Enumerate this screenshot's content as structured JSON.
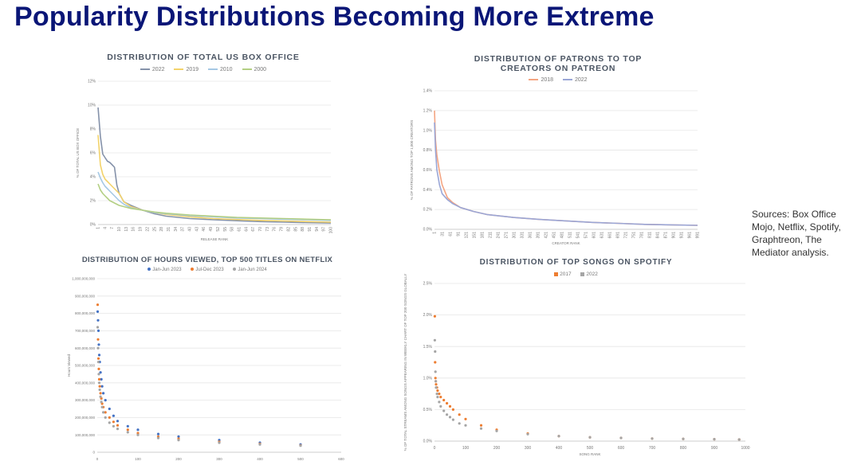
{
  "slide": {
    "title": "Popularity Distributions Becoming More Extreme",
    "sources": "Sources:  Box Office Mojo, Netflix, Spotify, Graphtreon, The Mediator analysis."
  },
  "chart_data": [
    {
      "id": "box",
      "type": "line",
      "title": "DISTRIBUTION OF TOTAL US BOX OFFICE",
      "xlabel": "RELEASE RANK",
      "ylabel": "% OF TOTAL US BOX OFFICE",
      "ylim": [
        0,
        12
      ],
      "yticks": [
        "0%",
        "2%",
        "4%",
        "6%",
        "8%",
        "10%",
        "12%"
      ],
      "xlim": [
        1,
        100
      ],
      "xticks": [
        "1",
        "4",
        "7",
        "10",
        "13",
        "16",
        "19",
        "22",
        "25",
        "28",
        "31",
        "34",
        "37",
        "40",
        "43",
        "46",
        "49",
        "52",
        "55",
        "58",
        "61",
        "64",
        "67",
        "70",
        "73",
        "76",
        "79",
        "82",
        "85",
        "88",
        "91",
        "94",
        "97",
        "100"
      ],
      "grid": true,
      "legend": "top",
      "series": [
        {
          "name": "2022",
          "color": "#8592aa",
          "x": [
            1,
            2,
            3,
            4,
            5,
            6,
            7,
            8,
            9,
            10,
            12,
            15,
            20,
            25,
            30,
            40,
            50,
            60,
            70,
            80,
            90,
            100
          ],
          "y": [
            9.8,
            7.4,
            5.9,
            5.6,
            5.3,
            5.2,
            5.0,
            4.8,
            3.3,
            2.6,
            1.9,
            1.6,
            1.2,
            0.9,
            0.7,
            0.5,
            0.4,
            0.32,
            0.25,
            0.2,
            0.16,
            0.13
          ]
        },
        {
          "name": "2019",
          "color": "#f3d36b",
          "x": [
            1,
            2,
            3,
            4,
            5,
            6,
            8,
            10,
            12,
            15,
            20,
            25,
            30,
            40,
            50,
            60,
            70,
            80,
            90,
            100
          ],
          "y": [
            7.5,
            5.0,
            4.2,
            3.8,
            3.6,
            3.4,
            3.0,
            2.6,
            1.9,
            1.5,
            1.2,
            1.0,
            0.85,
            0.65,
            0.5,
            0.42,
            0.35,
            0.3,
            0.25,
            0.2
          ]
        },
        {
          "name": "2010",
          "color": "#a5c8e4",
          "x": [
            1,
            2,
            3,
            4,
            5,
            6,
            8,
            10,
            12,
            15,
            20,
            25,
            30,
            40,
            50,
            60,
            70,
            80,
            90,
            100
          ],
          "y": [
            4.4,
            3.9,
            3.5,
            3.2,
            3.0,
            2.8,
            2.4,
            2.0,
            1.7,
            1.4,
            1.2,
            1.0,
            0.9,
            0.75,
            0.65,
            0.55,
            0.5,
            0.45,
            0.4,
            0.35
          ]
        },
        {
          "name": "2000",
          "color": "#b3cf83",
          "x": [
            1,
            2,
            3,
            4,
            5,
            6,
            8,
            10,
            12,
            15,
            20,
            25,
            30,
            40,
            50,
            60,
            70,
            80,
            90,
            100
          ],
          "y": [
            3.4,
            2.9,
            2.6,
            2.4,
            2.2,
            2.0,
            1.8,
            1.6,
            1.5,
            1.35,
            1.2,
            1.05,
            0.95,
            0.8,
            0.7,
            0.6,
            0.55,
            0.5,
            0.45,
            0.4
          ]
        }
      ]
    },
    {
      "id": "patreon",
      "type": "line",
      "title": "DISTRIBUTION OF PATRONS TO TOP CREATORS ON PATREON",
      "xlabel": "CREATOR RANK",
      "ylabel": "% OF PATRONS AMONG TOP 1,000 CREATORS",
      "ylim": [
        0,
        1.4
      ],
      "yticks": [
        "0.0%",
        "0.2%",
        "0.4%",
        "0.6%",
        "0.8%",
        "1.0%",
        "1.2%",
        "1.4%"
      ],
      "xlim": [
        1,
        1000
      ],
      "xticks": [
        "1",
        "31",
        "61",
        "91",
        "121",
        "151",
        "181",
        "211",
        "241",
        "271",
        "301",
        "331",
        "361",
        "391",
        "421",
        "451",
        "481",
        "511",
        "541",
        "571",
        "601",
        "631",
        "661",
        "691",
        "721",
        "751",
        "781",
        "811",
        "841",
        "871",
        "901",
        "931",
        "961",
        "991"
      ],
      "grid": true,
      "legend": "top",
      "series": [
        {
          "name": "2018",
          "color": "#f4a582",
          "x": [
            1,
            5,
            10,
            20,
            30,
            50,
            70,
            100,
            150,
            200,
            300,
            400,
            500,
            600,
            700,
            800,
            900,
            1000
          ],
          "y": [
            1.2,
            0.9,
            0.75,
            0.58,
            0.45,
            0.32,
            0.27,
            0.22,
            0.18,
            0.15,
            0.12,
            0.1,
            0.085,
            0.07,
            0.06,
            0.05,
            0.045,
            0.04
          ]
        },
        {
          "name": "2022",
          "color": "#9aa6d6",
          "x": [
            1,
            5,
            10,
            20,
            30,
            50,
            70,
            100,
            150,
            200,
            300,
            400,
            500,
            600,
            700,
            800,
            900,
            1000
          ],
          "y": [
            1.08,
            0.8,
            0.6,
            0.45,
            0.36,
            0.3,
            0.26,
            0.22,
            0.18,
            0.15,
            0.12,
            0.1,
            0.085,
            0.07,
            0.06,
            0.05,
            0.045,
            0.04
          ]
        }
      ]
    },
    {
      "id": "netflix",
      "type": "scatter",
      "title": "DISTRIBUTION OF HOURS VIEWED, TOP 500 TITLES ON NETFLIX",
      "xlabel": "",
      "ylabel": "Hours Viewed",
      "ylim": [
        0,
        1000000000
      ],
      "yticks": [
        "0",
        "100,000,000",
        "200,000,000",
        "300,000,000",
        "400,000,000",
        "500,000,000",
        "600,000,000",
        "700,000,000",
        "800,000,000",
        "900,000,000",
        "1,000,000,000"
      ],
      "xlim": [
        0,
        600
      ],
      "xticks": [
        "0",
        "100",
        "200",
        "300",
        "400",
        "500",
        "600"
      ],
      "grid": true,
      "legend": "top",
      "series": [
        {
          "name": "Jan-Jun 2023",
          "color": "#4472c4",
          "x": [
            1,
            2,
            3,
            4,
            5,
            6,
            8,
            10,
            12,
            15,
            20,
            30,
            40,
            50,
            75,
            100,
            150,
            200,
            300,
            400,
            500
          ],
          "y": [
            810000000,
            760000000,
            700000000,
            620000000,
            560000000,
            520000000,
            460000000,
            420000000,
            380000000,
            340000000,
            300000000,
            250000000,
            210000000,
            180000000,
            150000000,
            130000000,
            105000000,
            90000000,
            70000000,
            55000000,
            45000000
          ]
        },
        {
          "name": "Jul-Dec 2023",
          "color": "#ed7d31",
          "x": [
            1,
            2,
            3,
            4,
            5,
            6,
            8,
            10,
            12,
            15,
            20,
            30,
            40,
            50,
            75,
            100,
            150,
            200,
            300,
            400,
            500
          ],
          "y": [
            850000000,
            650000000,
            540000000,
            480000000,
            420000000,
            380000000,
            340000000,
            310000000,
            280000000,
            260000000,
            230000000,
            200000000,
            175000000,
            155000000,
            130000000,
            110000000,
            90000000,
            78000000,
            60000000,
            48000000,
            40000000
          ]
        },
        {
          "name": "Jan-Jun 2024",
          "color": "#a5a5a5",
          "x": [
            1,
            2,
            3,
            4,
            5,
            6,
            8,
            10,
            12,
            15,
            20,
            30,
            40,
            50,
            75,
            100,
            150,
            200,
            300,
            400,
            500
          ],
          "y": [
            720000000,
            600000000,
            520000000,
            450000000,
            400000000,
            360000000,
            320000000,
            290000000,
            260000000,
            230000000,
            200000000,
            170000000,
            150000000,
            135000000,
            115000000,
            100000000,
            82000000,
            70000000,
            55000000,
            45000000,
            38000000
          ]
        }
      ]
    },
    {
      "id": "spotify",
      "type": "scatter",
      "title": "DISTRIBUTION OF TOP SONGS ON SPOTIFY",
      "xlabel": "SONG RANK",
      "ylabel": "% OF TOTAL STREAMS AMONG SONGS APPEARING IN WEEKLY CHART OF TOP 200 SONGS GLOBALLY",
      "ylim": [
        0,
        2.5
      ],
      "yticks": [
        "0.0%",
        "0.5%",
        "1.0%",
        "1.5%",
        "2.0%",
        "2.5%"
      ],
      "xlim": [
        0,
        1000
      ],
      "xticks": [
        "0",
        "100",
        "200",
        "300",
        "400",
        "500",
        "600",
        "700",
        "800",
        "900",
        "1000"
      ],
      "grid": true,
      "legend": "top",
      "series": [
        {
          "name": "2017",
          "color": "#ed7d31",
          "x": [
            1,
            2,
            3,
            4,
            5,
            8,
            10,
            15,
            20,
            30,
            40,
            50,
            60,
            80,
            100,
            150,
            200,
            300,
            400,
            500,
            600,
            700,
            800,
            900,
            980
          ],
          "y": [
            1.98,
            1.25,
            1.0,
            0.95,
            0.9,
            0.85,
            0.8,
            0.75,
            0.7,
            0.65,
            0.6,
            0.55,
            0.5,
            0.42,
            0.35,
            0.25,
            0.18,
            0.12,
            0.08,
            0.06,
            0.05,
            0.04,
            0.035,
            0.03,
            0.025
          ]
        },
        {
          "name": "2022",
          "color": "#a5a5a5",
          "x": [
            1,
            2,
            3,
            4,
            5,
            8,
            10,
            15,
            20,
            30,
            40,
            50,
            60,
            80,
            100,
            150,
            200,
            300,
            400,
            500,
            600,
            700,
            800,
            900,
            980
          ],
          "y": [
            1.6,
            1.42,
            1.1,
            0.95,
            0.85,
            0.75,
            0.7,
            0.62,
            0.55,
            0.48,
            0.42,
            0.38,
            0.34,
            0.28,
            0.25,
            0.2,
            0.16,
            0.11,
            0.08,
            0.06,
            0.05,
            0.04,
            0.035,
            0.03,
            0.025
          ]
        }
      ]
    }
  ]
}
